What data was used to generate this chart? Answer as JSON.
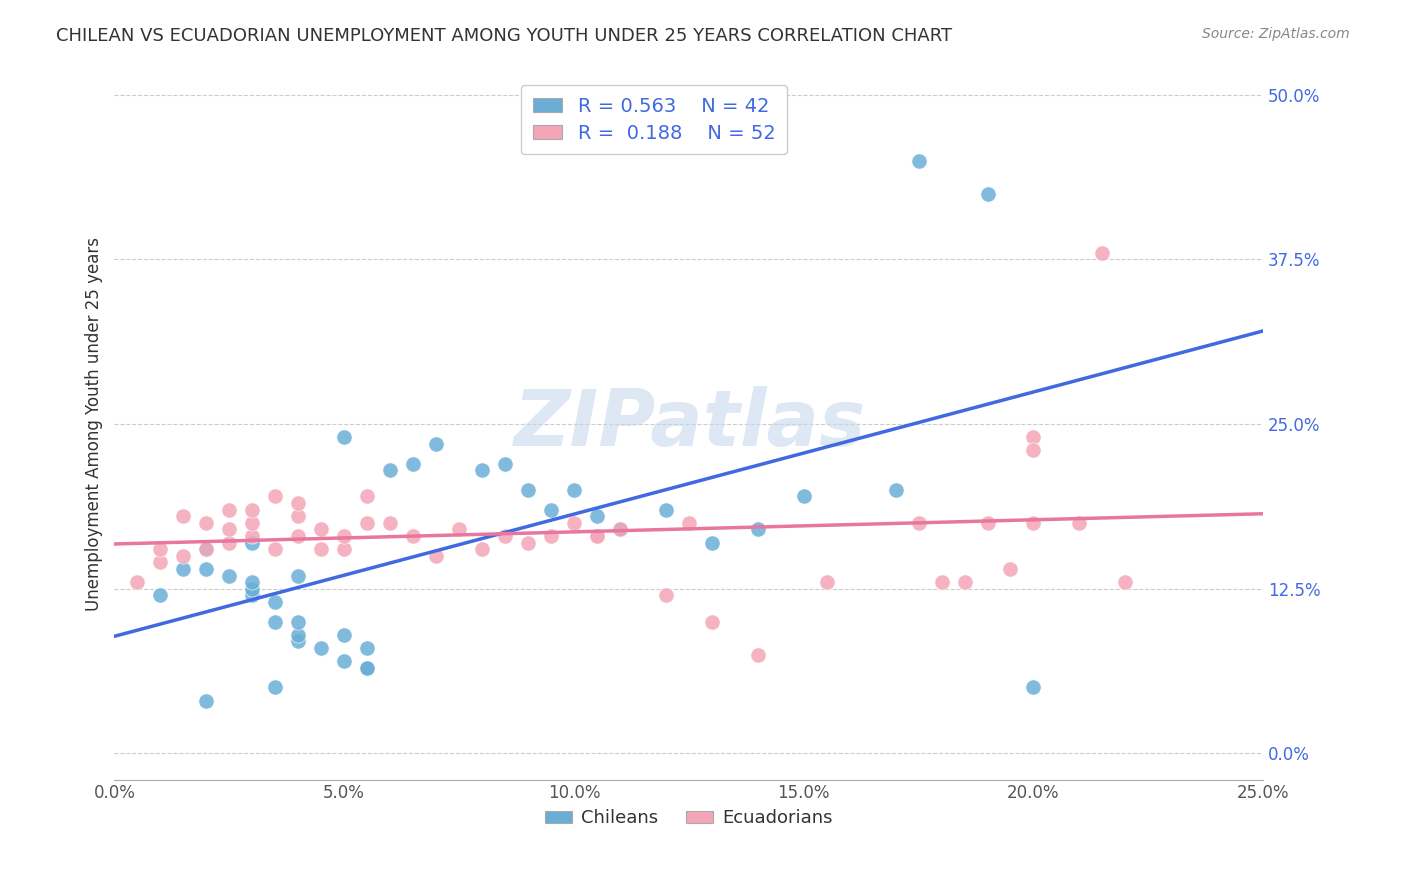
{
  "title": "CHILEAN VS ECUADORIAN UNEMPLOYMENT AMONG YOUTH UNDER 25 YEARS CORRELATION CHART",
  "source": "Source: ZipAtlas.com",
  "ylabel": "Unemployment Among Youth under 25 years",
  "xlim": [
    0.0,
    0.25
  ],
  "ylim": [
    -0.02,
    0.52
  ],
  "chilean_color": "#6aaed6",
  "ecuadorian_color": "#f4a6b8",
  "chilean_line_color": "#4169e1",
  "ecuadorian_line_color": "#e8769e",
  "watermark": "ZIPatlas",
  "legend_R_chilean": "0.563",
  "legend_N_chilean": "42",
  "legend_R_ecuadorian": "0.188",
  "legend_N_ecuadorian": "52",
  "chilean_x": [
    0.01,
    0.015,
    0.02,
    0.02,
    0.025,
    0.03,
    0.03,
    0.03,
    0.03,
    0.035,
    0.035,
    0.04,
    0.04,
    0.04,
    0.04,
    0.045,
    0.05,
    0.05,
    0.05,
    0.055,
    0.055,
    0.06,
    0.065,
    0.07,
    0.08,
    0.085,
    0.09,
    0.095,
    0.1,
    0.105,
    0.11,
    0.12,
    0.13,
    0.14,
    0.15,
    0.17,
    0.19,
    0.2,
    0.02,
    0.035,
    0.055,
    0.175
  ],
  "chilean_y": [
    0.12,
    0.14,
    0.155,
    0.14,
    0.135,
    0.12,
    0.125,
    0.13,
    0.16,
    0.115,
    0.1,
    0.085,
    0.09,
    0.1,
    0.135,
    0.08,
    0.07,
    0.09,
    0.24,
    0.065,
    0.08,
    0.215,
    0.22,
    0.235,
    0.215,
    0.22,
    0.2,
    0.185,
    0.2,
    0.18,
    0.17,
    0.185,
    0.16,
    0.17,
    0.195,
    0.2,
    0.425,
    0.05,
    0.04,
    0.05,
    0.065,
    0.45
  ],
  "ecuadorian_x": [
    0.005,
    0.01,
    0.01,
    0.015,
    0.015,
    0.02,
    0.02,
    0.025,
    0.025,
    0.025,
    0.03,
    0.03,
    0.03,
    0.035,
    0.035,
    0.04,
    0.04,
    0.04,
    0.045,
    0.045,
    0.05,
    0.05,
    0.055,
    0.055,
    0.06,
    0.065,
    0.07,
    0.075,
    0.08,
    0.085,
    0.09,
    0.095,
    0.1,
    0.105,
    0.105,
    0.11,
    0.12,
    0.13,
    0.14,
    0.155,
    0.175,
    0.19,
    0.2,
    0.2,
    0.21,
    0.22,
    0.215,
    0.2,
    0.195,
    0.185,
    0.18,
    0.125
  ],
  "ecuadorian_y": [
    0.13,
    0.145,
    0.155,
    0.15,
    0.18,
    0.155,
    0.175,
    0.16,
    0.17,
    0.185,
    0.165,
    0.175,
    0.185,
    0.155,
    0.195,
    0.165,
    0.18,
    0.19,
    0.155,
    0.17,
    0.155,
    0.165,
    0.175,
    0.195,
    0.175,
    0.165,
    0.15,
    0.17,
    0.155,
    0.165,
    0.16,
    0.165,
    0.175,
    0.165,
    0.165,
    0.17,
    0.12,
    0.1,
    0.075,
    0.13,
    0.175,
    0.175,
    0.175,
    0.24,
    0.175,
    0.13,
    0.38,
    0.23,
    0.14,
    0.13,
    0.13,
    0.175
  ]
}
